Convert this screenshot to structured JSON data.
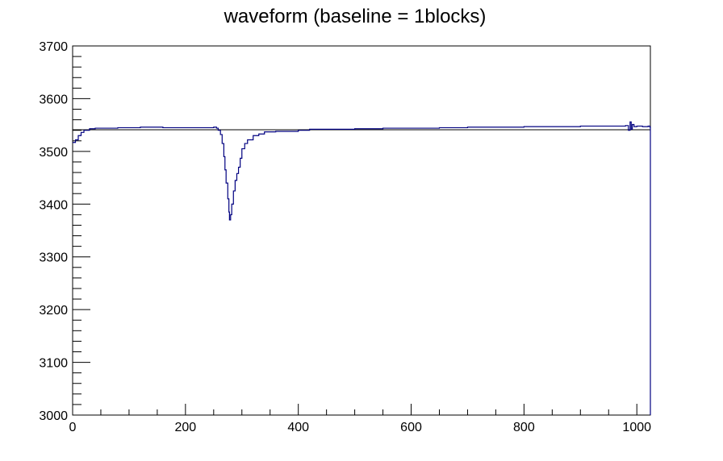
{
  "chart_data": {
    "type": "line",
    "style": "step histogram",
    "title": "waveform (baseline = 1blocks)",
    "xlim": [
      0,
      1024
    ],
    "ylim": [
      3000,
      3700
    ],
    "x_ticks": [
      0,
      200,
      400,
      600,
      800,
      1000
    ],
    "y_ticks": [
      3000,
      3100,
      3200,
      3300,
      3400,
      3500,
      3600,
      3700
    ],
    "grid": false,
    "baseline": 3541,
    "series": [
      {
        "color": "#000080",
        "x": [
          0,
          5,
          10,
          15,
          20,
          30,
          40,
          60,
          80,
          100,
          120,
          140,
          160,
          180,
          200,
          220,
          240,
          250,
          255,
          258,
          262,
          265,
          268,
          270,
          272,
          275,
          277,
          278,
          280,
          282,
          285,
          288,
          291,
          294,
          297,
          300,
          305,
          310,
          320,
          330,
          340,
          360,
          380,
          400,
          420,
          450,
          500,
          550,
          600,
          650,
          700,
          750,
          800,
          850,
          900,
          950,
          970,
          980,
          985,
          988,
          990,
          992,
          995,
          1000,
          1010,
          1020,
          1023
        ],
        "y": [
          3517,
          3522,
          3530,
          3536,
          3540,
          3543,
          3544,
          3544,
          3545,
          3545,
          3546,
          3546,
          3545,
          3545,
          3545,
          3545,
          3545,
          3546,
          3544,
          3540,
          3532,
          3515,
          3490,
          3465,
          3440,
          3410,
          3385,
          3370,
          3380,
          3400,
          3425,
          3445,
          3458,
          3470,
          3487,
          3505,
          3515,
          3522,
          3530,
          3533,
          3537,
          3538,
          3538,
          3540,
          3542,
          3542,
          3543,
          3544,
          3544,
          3545,
          3546,
          3546,
          3547,
          3547,
          3548,
          3548,
          3548,
          3549,
          3540,
          3556,
          3542,
          3551,
          3547,
          3548,
          3547,
          3548,
          3546
        ]
      }
    ]
  }
}
